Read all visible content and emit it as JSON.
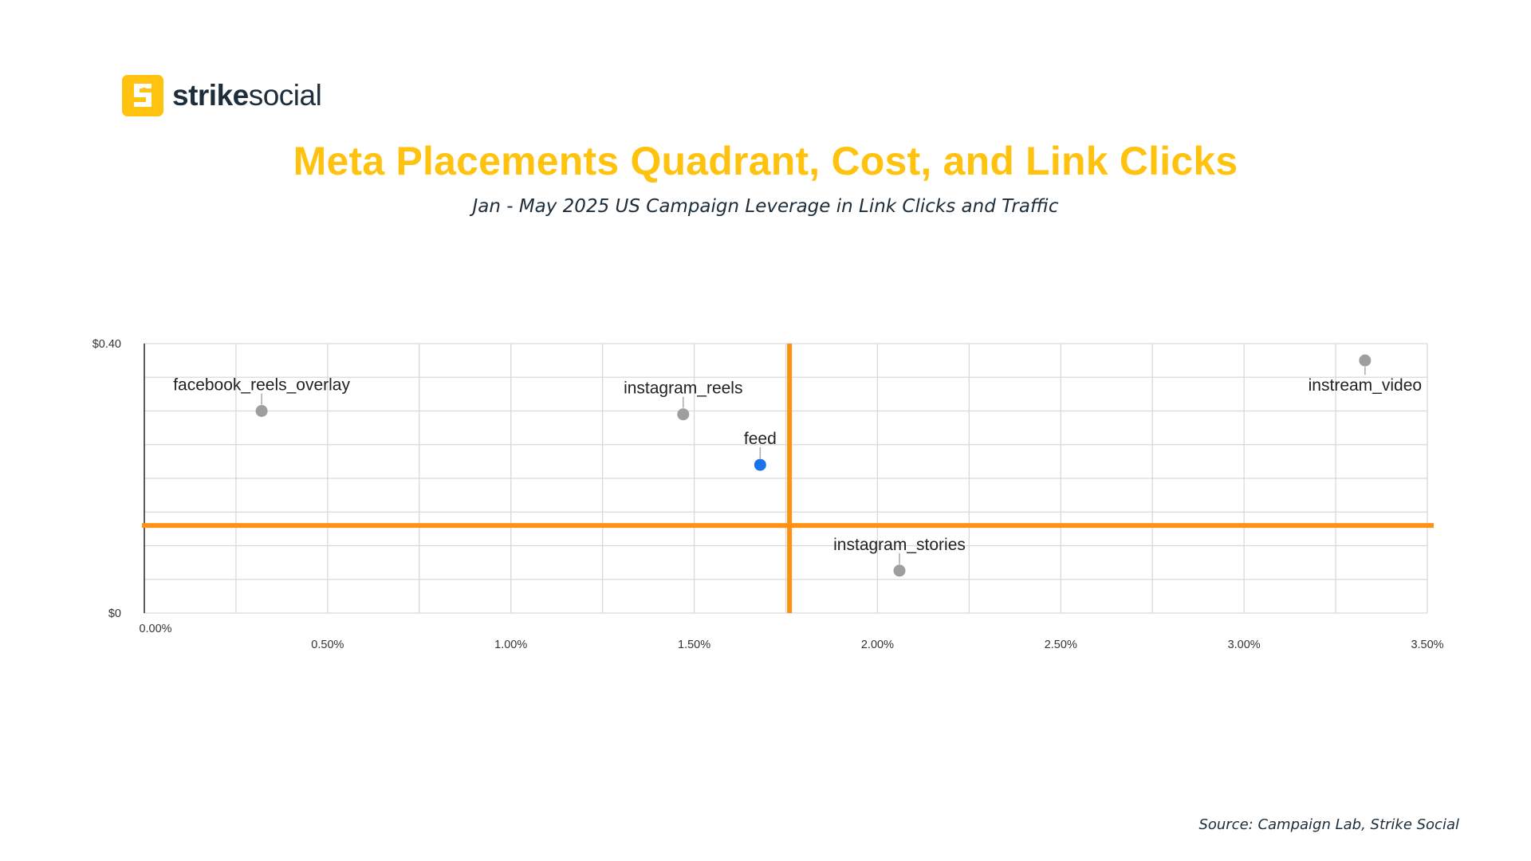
{
  "brand": {
    "name_strong": "strike",
    "name_light": "social",
    "accent": "#ffc20e",
    "text_color": "#1d2d3a"
  },
  "header": {
    "title": "Meta Placements Quadrant, Cost, and Link Clicks",
    "subtitle": "Jan - May 2025 US Campaign Leverage in Link Clicks and Traffic"
  },
  "footer": {
    "source": "Source: Campaign Lab, Strike Social"
  },
  "chart_data": {
    "type": "scatter",
    "xlim": [
      0,
      3.5
    ],
    "ylim": [
      0,
      0.4
    ],
    "x_ticks": [
      {
        "value": 0,
        "label": "0.00%"
      },
      {
        "value": 0.5,
        "label": "0.50%"
      },
      {
        "value": 1.0,
        "label": "1.00%"
      },
      {
        "value": 1.5,
        "label": "1.50%"
      },
      {
        "value": 2.0,
        "label": "2.00%"
      },
      {
        "value": 2.5,
        "label": "2.50%"
      },
      {
        "value": 3.0,
        "label": "3.00%"
      },
      {
        "value": 3.5,
        "label": "3.50%"
      }
    ],
    "y_ticks": [
      {
        "value": 0,
        "label": "$0"
      },
      {
        "value": 0.4,
        "label": "$0.40"
      }
    ],
    "grid": true,
    "quadrant_lines": {
      "x": 1.76,
      "y": 0.13,
      "color": "#ff9214"
    },
    "points": [
      {
        "label": "facebook_reels_overlay",
        "x": 0.32,
        "y": 0.3,
        "color": "#9e9e9e",
        "label_side": "above"
      },
      {
        "label": "instagram_reels",
        "x": 1.47,
        "y": 0.295,
        "color": "#9e9e9e",
        "label_side": "above"
      },
      {
        "label": "feed",
        "x": 1.68,
        "y": 0.22,
        "color": "#1a73e8",
        "label_side": "above"
      },
      {
        "label": "instream_video",
        "x": 3.33,
        "y": 0.375,
        "color": "#9e9e9e",
        "label_side": "below"
      },
      {
        "label": "instagram_stories",
        "x": 2.06,
        "y": 0.063,
        "color": "#9e9e9e",
        "label_side": "above"
      }
    ]
  }
}
